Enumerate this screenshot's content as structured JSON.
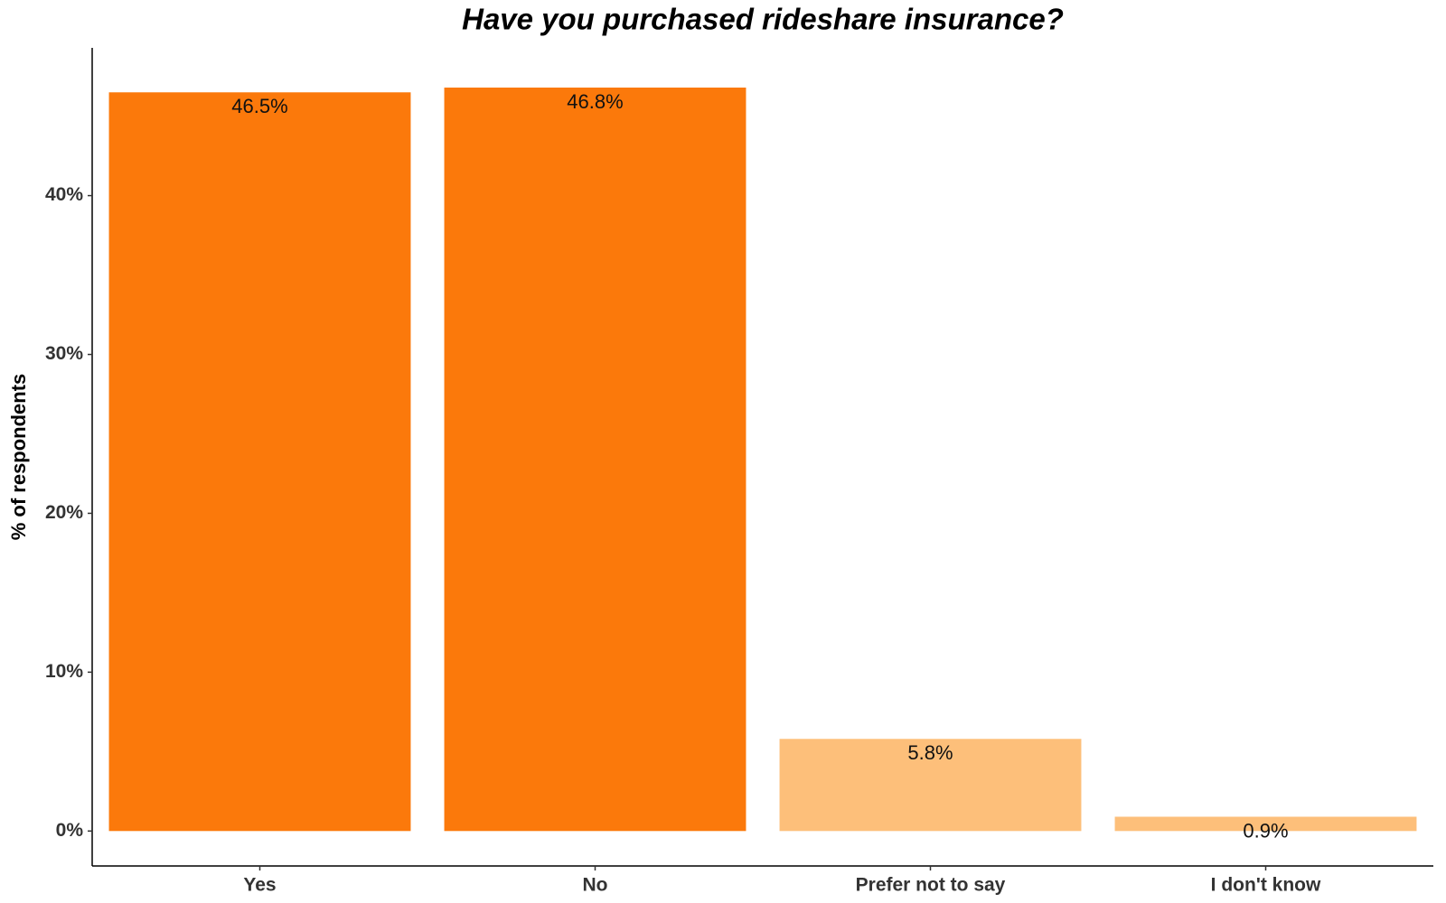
{
  "chart_data": {
    "type": "bar",
    "title": "Have you purchased rideshare insurance?",
    "y_label": "% of respondents",
    "categories": [
      "Yes",
      "No",
      "Prefer not to say",
      "I don't know"
    ],
    "values": [
      46.5,
      46.8,
      5.8,
      0.9
    ],
    "value_labels": [
      "46.5%",
      "46.8%",
      "5.8%",
      "0.9%"
    ],
    "colors": [
      "#fb790b",
      "#fb790b",
      "#fdbf7a",
      "#fdbf7a"
    ],
    "ylim": [
      -2.2,
      49.3
    ],
    "yticks": [
      {
        "value": 0,
        "label": "0%"
      },
      {
        "value": 10,
        "label": "10%"
      },
      {
        "value": 20,
        "label": "20%"
      },
      {
        "value": 30,
        "label": "30%"
      },
      {
        "value": 40,
        "label": "40%"
      }
    ],
    "grid": false
  }
}
